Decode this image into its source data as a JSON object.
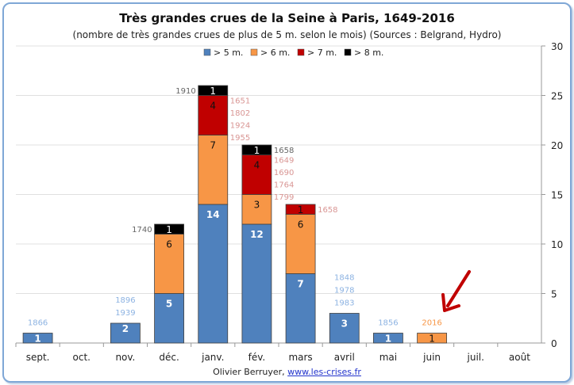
{
  "chart_data": {
    "type": "bar",
    "stacked": true,
    "title": "Très grandes crues de la Seine à Paris, 1649-2016",
    "subtitle": "(nombre de très grandes crues de plus de 5 m. selon le mois) (Sources : Belgrand, Hydro)",
    "categories": [
      "sept.",
      "oct.",
      "nov.",
      "déc.",
      "janv.",
      "fév.",
      "mars",
      "avril",
      "mai",
      "juin",
      "juil.",
      "août"
    ],
    "series": [
      {
        "name": "> 5 m.",
        "color": "#4f81bd",
        "values": [
          1,
          0,
          2,
          5,
          14,
          12,
          7,
          3,
          1,
          0,
          0,
          0
        ]
      },
      {
        "name": "> 6 m.",
        "color": "#f79646",
        "values": [
          0,
          0,
          0,
          6,
          7,
          3,
          6,
          0,
          0,
          1,
          0,
          0
        ]
      },
      {
        "name": "> 7 m.",
        "color": "#c00000",
        "values": [
          0,
          0,
          0,
          0,
          4,
          4,
          1,
          0,
          0,
          0,
          0,
          0
        ]
      },
      {
        "name": "> 8 m.",
        "color": "#000000",
        "values": [
          0,
          0,
          0,
          1,
          1,
          1,
          0,
          0,
          0,
          0,
          0,
          0
        ]
      }
    ],
    "year_annotations": [
      {
        "category": "sept.",
        "side": "top",
        "color": "#8db3e2",
        "years": [
          "1866"
        ]
      },
      {
        "category": "nov.",
        "side": "top",
        "color": "#8db3e2",
        "years": [
          "1896",
          "1939"
        ]
      },
      {
        "category": "déc.",
        "side": "left",
        "color": "#666666",
        "series": 3,
        "years": [
          "1740"
        ]
      },
      {
        "category": "janv.",
        "side": "left",
        "color": "#666666",
        "series": 3,
        "years": [
          "1910"
        ]
      },
      {
        "category": "janv.",
        "side": "right",
        "color": "#d99694",
        "series": 2,
        "years": [
          "1651",
          "1802",
          "1924",
          "1955"
        ]
      },
      {
        "category": "fév.",
        "side": "right",
        "color": "#666666",
        "series": 3,
        "years": [
          "1658"
        ]
      },
      {
        "category": "fév.",
        "side": "right",
        "color": "#d99694",
        "series": 2,
        "years": [
          "1649",
          "1690",
          "1764",
          "1799"
        ]
      },
      {
        "category": "mars",
        "side": "right",
        "color": "#d99694",
        "series": 2,
        "years": [
          "1658"
        ]
      },
      {
        "category": "avril",
        "side": "top",
        "color": "#8db3e2",
        "years": [
          "1848",
          "1978",
          "1983"
        ]
      },
      {
        "category": "mai",
        "side": "top",
        "color": "#8db3e2",
        "years": [
          "1856"
        ]
      },
      {
        "category": "juin",
        "side": "top",
        "color": "#f79646",
        "years": [
          "2016"
        ]
      }
    ],
    "ylim": [
      0,
      30
    ],
    "yticks": [
      "0",
      "5",
      "10",
      "15",
      "20",
      "25",
      "30"
    ],
    "y_axis_side": "right",
    "grid": true,
    "legend": "top-center",
    "annotation_arrow": {
      "color": "#c00000",
      "points_to": "juin"
    }
  },
  "footer": {
    "author": "Olivier Berruyer,",
    "link": "www.les-crises.fr"
  }
}
